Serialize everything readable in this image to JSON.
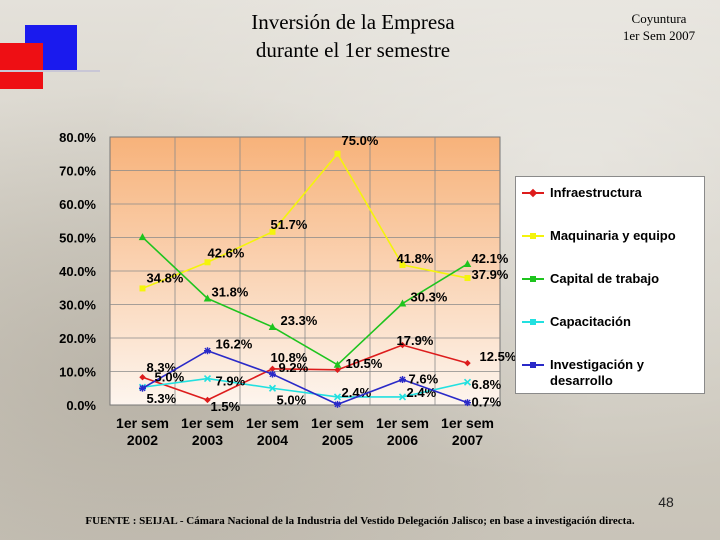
{
  "header": {
    "title_line1": "Inversión de la Empresa",
    "title_line2": "durante el 1er semestre",
    "corner_line1": "Coyuntura",
    "corner_line2": "1er Sem 2007"
  },
  "colors": {
    "deco_blue": "#1a1aee",
    "deco_red": "#ee0f14",
    "plot_top": "#f7b27a",
    "plot_bottom": "#fdf5ee"
  },
  "chart_data": {
    "type": "line",
    "categories": [
      "1er sem 2002",
      "1er sem 2003",
      "1er sem 2004",
      "1er sem 2005",
      "1er sem 2006",
      "1er sem 2007"
    ],
    "category_lines": [
      [
        "1er sem",
        "2002"
      ],
      [
        "1er sem",
        "2003"
      ],
      [
        "1er sem",
        "2004"
      ],
      [
        "1er sem",
        "2005"
      ],
      [
        "1er sem",
        "2006"
      ],
      [
        "1er sem",
        "2007"
      ]
    ],
    "ylim": [
      0,
      80
    ],
    "yticks": [
      "0.0%",
      "10.0%",
      "20.0%",
      "30.0%",
      "40.0%",
      "50.0%",
      "60.0%",
      "70.0%",
      "80.0%"
    ],
    "grid": true,
    "legend_position": "right",
    "series": [
      {
        "name": "Infraestructura",
        "color": "#dd1c1c",
        "marker": "diamond",
        "values": [
          8.3,
          1.5,
          10.8,
          10.5,
          17.9,
          12.5
        ],
        "labels": [
          "8.3%",
          "1.5%",
          "10.8%",
          "10.5%",
          "17.9%",
          "12.5%"
        ]
      },
      {
        "name": "Maquinaria y equipo",
        "color": "#f4f40c",
        "marker": "square",
        "values": [
          34.8,
          42.6,
          51.7,
          75.0,
          41.8,
          37.9
        ],
        "labels": [
          "34.8%",
          "42.6%",
          "51.7%",
          "75.0%",
          "41.8%",
          "37.9%"
        ]
      },
      {
        "name": "Capital de trabajo",
        "color": "#1ec41e",
        "marker": "triangle",
        "values": [
          50.1,
          31.8,
          23.3,
          12.0,
          30.3,
          42.1
        ],
        "labels": [
          "",
          "31.8%",
          "23.3%",
          "",
          "30.3%",
          "42.1%"
        ]
      },
      {
        "name": "Capacitación",
        "color": "#22e0e0",
        "marker": "x",
        "values": [
          5.3,
          7.9,
          5.0,
          2.4,
          2.4,
          6.8
        ],
        "labels": [
          "5.3%",
          "7.9%",
          "5.0%",
          "2.4%",
          "2.4%",
          "6.8%"
        ]
      },
      {
        "name": "Investigación y desarrollo",
        "color": "#2a2ac8",
        "marker": "star",
        "values": [
          5.0,
          16.2,
          9.2,
          0.2,
          7.6,
          0.7
        ],
        "labels": [
          "5.0%",
          "16.2%",
          "9.2%",
          "",
          "7.6%",
          "0.7%"
        ]
      }
    ],
    "legend": [
      {
        "line1": "Infraestructura",
        "line2": "",
        "color": "#dd1c1c"
      },
      {
        "line1": "Maquinaria y equipo",
        "line2": "",
        "color": "#f4f40c"
      },
      {
        "line1": "Capital de trabajo",
        "line2": "",
        "color": "#1ec41e"
      },
      {
        "line1": "Capacitación",
        "line2": "",
        "color": "#22e0e0"
      },
      {
        "line1": "Investigación y",
        "line2": "desarrollo",
        "color": "#2a2ac8"
      }
    ]
  },
  "footer": {
    "page_number": "48",
    "source": "FUENTE : SEIJAL - Cámara Nacional de la Industria del Vestido Delegación Jalisco; en base a investigación directa."
  }
}
